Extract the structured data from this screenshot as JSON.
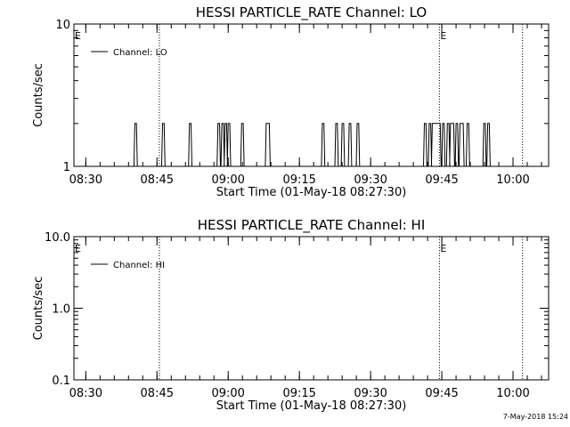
{
  "footer": {
    "timestamp": "7-May-2018 15:24"
  },
  "chart_data": [
    {
      "type": "line",
      "title": "HESSI PARTICLE_RATE Channel: LO",
      "xlabel": "Start Time (01-May-18 08:27:30)",
      "ylabel": "Counts/sec",
      "y_scale": "log",
      "ylim": [
        1,
        10
      ],
      "y_ticks": [
        {
          "v": 1,
          "label": "1"
        },
        {
          "v": 10,
          "label": "10"
        }
      ],
      "xlim": [
        "08:27:30",
        "10:07:30"
      ],
      "x_ticks": [
        "08:30",
        "08:45",
        "09:00",
        "09:15",
        "09:30",
        "09:45",
        "10:00"
      ],
      "legend": {
        "label": "Channel: LO",
        "position": "top-left"
      },
      "event_lines": [
        {
          "time": "08:45:30",
          "label": ""
        },
        {
          "time": "09:44:30",
          "label": "E"
        },
        {
          "time": "10:02:00",
          "label": ""
        }
      ],
      "event_markers": [
        {
          "time": "08:27:30",
          "label": "E"
        }
      ],
      "series": [
        {
          "color": "#000000",
          "baseline": 1,
          "spikes": [
            {
              "start": "08:40:20",
              "end": "08:40:40",
              "value": 2
            },
            {
              "start": "08:46:10",
              "end": "08:46:30",
              "value": 2
            },
            {
              "start": "08:51:50",
              "end": "08:52:10",
              "value": 2
            },
            {
              "start": "08:57:50",
              "end": "08:58:10",
              "value": 2
            },
            {
              "start": "08:58:40",
              "end": "08:59:00",
              "value": 2
            },
            {
              "start": "08:59:20",
              "end": "08:59:40",
              "value": 2
            },
            {
              "start": "09:00:00",
              "end": "09:00:20",
              "value": 2
            },
            {
              "start": "09:02:50",
              "end": "09:03:10",
              "value": 2
            },
            {
              "start": "09:08:00",
              "end": "09:08:40",
              "value": 2
            },
            {
              "start": "09:19:50",
              "end": "09:20:10",
              "value": 2
            },
            {
              "start": "09:22:40",
              "end": "09:23:00",
              "value": 2
            },
            {
              "start": "09:24:00",
              "end": "09:24:20",
              "value": 2
            },
            {
              "start": "09:25:30",
              "end": "09:25:50",
              "value": 2
            },
            {
              "start": "09:27:10",
              "end": "09:27:30",
              "value": 2
            },
            {
              "start": "09:41:20",
              "end": "09:41:40",
              "value": 2
            },
            {
              "start": "09:42:20",
              "end": "09:42:40",
              "value": 2
            },
            {
              "start": "09:43:00",
              "end": "09:44:40",
              "value": 2
            },
            {
              "start": "09:45:10",
              "end": "09:45:30",
              "value": 2
            },
            {
              "start": "09:46:10",
              "end": "09:46:30",
              "value": 2
            },
            {
              "start": "09:46:50",
              "end": "09:47:30",
              "value": 2
            },
            {
              "start": "09:48:00",
              "end": "09:48:20",
              "value": 2
            },
            {
              "start": "09:48:50",
              "end": "09:49:30",
              "value": 2
            },
            {
              "start": "09:50:20",
              "end": "09:50:40",
              "value": 2
            },
            {
              "start": "09:53:50",
              "end": "09:54:10",
              "value": 2
            },
            {
              "start": "09:54:40",
              "end": "09:55:00",
              "value": 2
            }
          ]
        }
      ]
    },
    {
      "type": "line",
      "title": "HESSI PARTICLE_RATE Channel: HI",
      "xlabel": "Start Time (01-May-18 08:27:30)",
      "ylabel": "Counts/sec",
      "y_scale": "log",
      "ylim": [
        0.1,
        10
      ],
      "y_ticks": [
        {
          "v": 0.1,
          "label": "0.1"
        },
        {
          "v": 1,
          "label": "1.0"
        },
        {
          "v": 10,
          "label": "10.0"
        }
      ],
      "xlim": [
        "08:27:30",
        "10:07:30"
      ],
      "x_ticks": [
        "08:30",
        "08:45",
        "09:00",
        "09:15",
        "09:30",
        "09:45",
        "10:00"
      ],
      "legend": {
        "label": "Channel: HI",
        "position": "top-left"
      },
      "event_lines": [
        {
          "time": "08:45:30",
          "label": ""
        },
        {
          "time": "09:44:30",
          "label": "E"
        },
        {
          "time": "10:02:00",
          "label": ""
        }
      ],
      "event_markers": [
        {
          "time": "08:27:30",
          "label": "E"
        }
      ],
      "series": []
    }
  ]
}
